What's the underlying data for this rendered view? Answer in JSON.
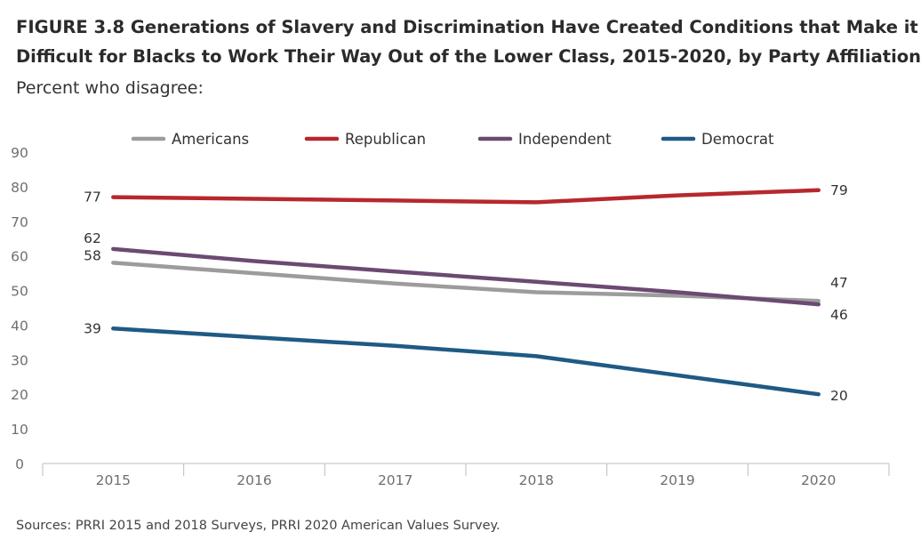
{
  "title": {
    "line1": "FIGURE 3.8  Generations of Slavery and Discrimination Have Created Conditions that Make it",
    "line2": "Difficult for Blacks to Work Their Way Out of the Lower Class, 2015-2020, by Party Affiliation"
  },
  "subtitle": "Percent who disagree:",
  "source": "Sources: PRRI 2015 and 2018 Surveys, PRRI 2020 American Values Survey.",
  "chart_data": {
    "type": "line",
    "title": "Generations of Slavery and Discrimination Have Created Conditions that Make it Difficult for Blacks to Work Their Way Out of the Lower Class, 2015-2020, by Party Affiliation",
    "subtitle": "Percent who disagree:",
    "xlabel": "",
    "ylabel": "",
    "categories": [
      "2015",
      "2016",
      "2017",
      "2018",
      "2019",
      "2020"
    ],
    "ylim": [
      0,
      90
    ],
    "yticks": [
      0,
      10,
      20,
      30,
      40,
      50,
      60,
      70,
      80,
      90
    ],
    "grid": false,
    "legend_position": "top",
    "series": [
      {
        "name": "Americans",
        "color": "#9c9c9c",
        "values": [
          58,
          55,
          52,
          49.5,
          48.5,
          47
        ],
        "labels": {
          "first": "58",
          "last": "47"
        }
      },
      {
        "name": "Republican",
        "color": "#b7282e",
        "values": [
          77,
          76.5,
          76,
          75.5,
          77.5,
          79
        ],
        "labels": {
          "first": "77",
          "last": "79"
        }
      },
      {
        "name": "Independent",
        "color": "#6b4a73",
        "values": [
          62,
          58.5,
          55.5,
          52.5,
          49.5,
          46
        ],
        "labels": {
          "first": "62",
          "last": "46"
        }
      },
      {
        "name": "Democrat",
        "color": "#1f5a85",
        "values": [
          39,
          36.5,
          34,
          31,
          25.5,
          20
        ],
        "labels": {
          "first": "39",
          "last": "20"
        }
      }
    ]
  }
}
